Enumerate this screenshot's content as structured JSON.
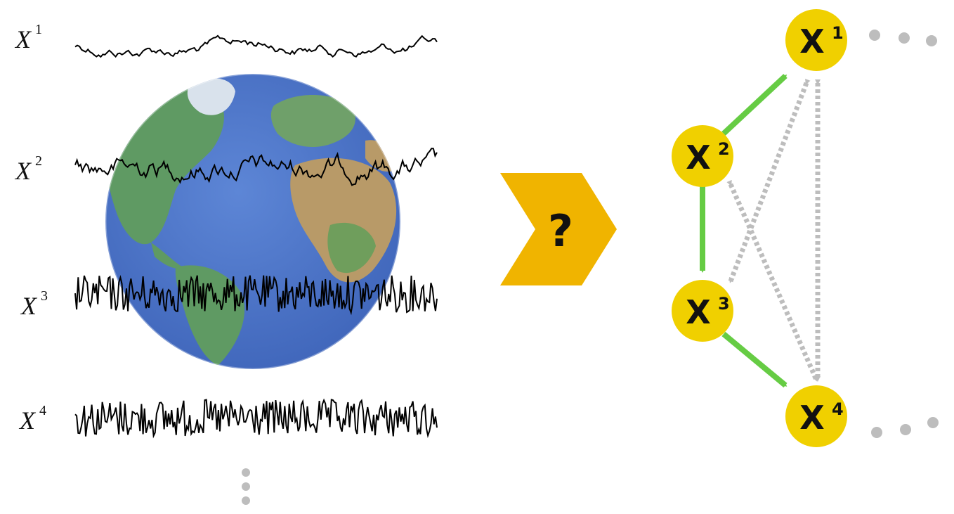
{
  "colors": {
    "ocean": "#4a74c9",
    "land": "#5f9a63",
    "desert": "#b89a68",
    "node_fill": "#f0d000",
    "causal_edge": "#66cc44",
    "candidate_edge": "#bdbdbd",
    "dots": "#bdbdbd",
    "question_chevron": "#f0b400",
    "signal": "#000000"
  },
  "series": [
    {
      "var": "X",
      "sup": "1",
      "roughness": "smooth"
    },
    {
      "var": "X",
      "sup": "2",
      "roughness": "medium"
    },
    {
      "var": "X",
      "sup": "3",
      "roughness": "noisy"
    },
    {
      "var": "X",
      "sup": "4",
      "roughness": "noisy"
    }
  ],
  "question": {
    "label": "?",
    "icon": "chevron-right-icon"
  },
  "graph": {
    "nodes": [
      {
        "id": "1",
        "var": "X",
        "sup": "1"
      },
      {
        "id": "2",
        "var": "X",
        "sup": "2"
      },
      {
        "id": "3",
        "var": "X",
        "sup": "3"
      },
      {
        "id": "4",
        "var": "X",
        "sup": "4"
      }
    ],
    "causal_edges": [
      {
        "from": "2",
        "to": "1"
      },
      {
        "from": "2",
        "to": "3"
      },
      {
        "from": "3",
        "to": "4"
      }
    ],
    "candidate_edges": [
      {
        "between": [
          "1",
          "3"
        ],
        "arrowheads": "both"
      },
      {
        "between": [
          "2",
          "4"
        ],
        "arrowheads": "both"
      },
      {
        "between": [
          "1",
          "4"
        ],
        "arrowheads": "both"
      }
    ]
  },
  "globe": {
    "icon": "earth-globe-icon"
  }
}
